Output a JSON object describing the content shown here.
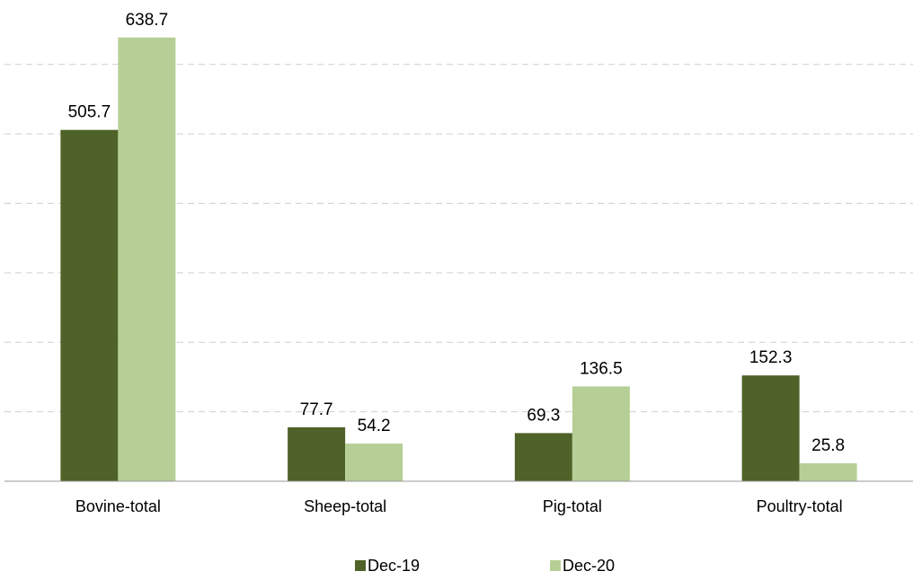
{
  "chart_data": {
    "type": "bar",
    "categories": [
      "Bovine-total",
      "Sheep-total",
      "Pig-total",
      "Poultry-total"
    ],
    "series": [
      {
        "name": "Dec-19",
        "values": [
          505.7,
          77.7,
          69.3,
          152.3
        ],
        "color": "#4f6228"
      },
      {
        "name": "Dec-20",
        "values": [
          638.7,
          54.2,
          136.5,
          25.8
        ],
        "color": "#b6cf96"
      }
    ],
    "ylim": [
      0,
      700
    ],
    "gridlines": [
      100,
      200,
      300,
      400,
      500,
      600
    ],
    "grid": true,
    "grid_style": "dashed",
    "axis_color": "#999999",
    "legend_position": "bottom",
    "title": "",
    "xlabel": "",
    "ylabel": ""
  }
}
